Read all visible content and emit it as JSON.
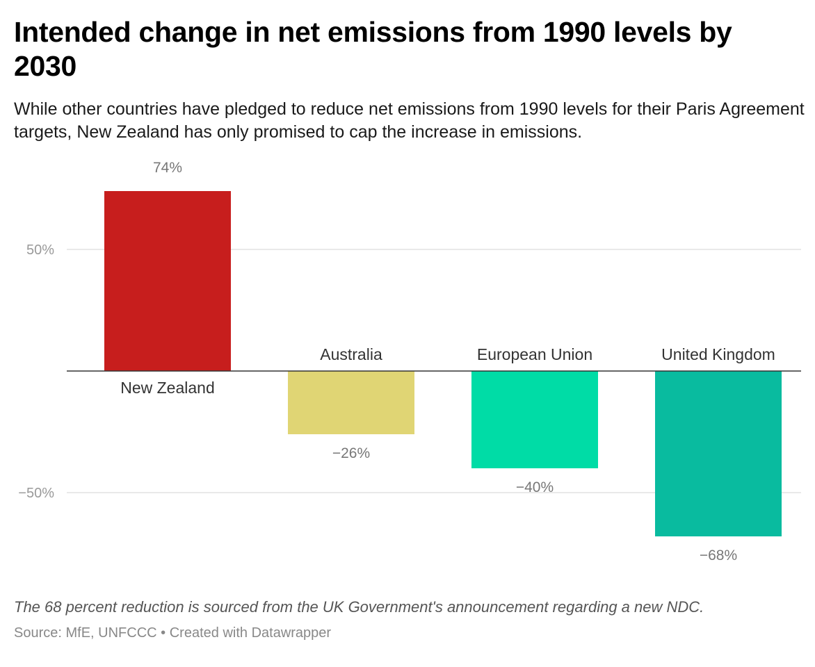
{
  "header": {
    "title": "Intended change in net emissions from 1990 levels by 2030",
    "subtitle": "While other countries have pledged to reduce net emissions from 1990 levels for their Paris Agreement targets, New Zealand has only promised to cap the increase in emissions."
  },
  "footer": {
    "note": "The 68 percent reduction is sourced from the UK Government's announcement regarding a new NDC.",
    "source": "Source: MfE, UNFCCC",
    "separator": "•",
    "credit": "Created with Datawrapper"
  },
  "chart_data": {
    "type": "bar",
    "categories": [
      "New Zealand",
      "Australia",
      "European Union",
      "United Kingdom"
    ],
    "values": [
      74,
      -26,
      -40,
      -68
    ],
    "value_labels": [
      "74%",
      "−26%",
      "−40%",
      "−68%"
    ],
    "colors": [
      "#c71e1d",
      "#e0d574",
      "#00dca6",
      "#09bb9f"
    ],
    "y_ticks": [
      50,
      -50
    ],
    "y_tick_labels": [
      "50%",
      "−50%"
    ],
    "ylim": [
      -85,
      90
    ],
    "grid": true,
    "title": "",
    "xlabel": "",
    "ylabel": ""
  }
}
